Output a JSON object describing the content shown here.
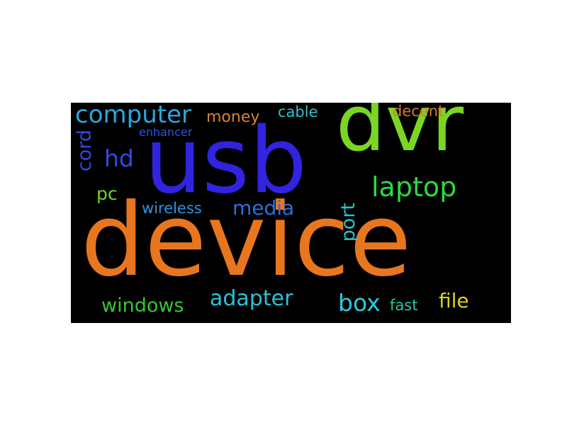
{
  "word_cloud": {
    "background_color": "#000000",
    "words": {
      "device": {
        "text": "device",
        "color": "#e8761f"
      },
      "usb": {
        "text": "usb",
        "color": "#3123e0"
      },
      "dvr": {
        "text": "dvr",
        "color": "#7bd624"
      },
      "laptop": {
        "text": "laptop",
        "color": "#2bd840"
      },
      "computer": {
        "text": "computer",
        "color": "#27a8dc"
      },
      "media": {
        "text": "media",
        "color": "#2c6fe0"
      },
      "windows": {
        "text": "windows",
        "color": "#33c730"
      },
      "adapter": {
        "text": "adapter",
        "color": "#2bc2d8"
      },
      "box": {
        "text": "box",
        "color": "#2bc9e0"
      },
      "file": {
        "text": "file",
        "color": "#d8d31e"
      },
      "fast": {
        "text": "fast",
        "color": "#26c7a6"
      },
      "hd": {
        "text": "hd",
        "color": "#3049e0"
      },
      "pc": {
        "text": "pc",
        "color": "#72d42a"
      },
      "wireless": {
        "text": "wireless",
        "color": "#2d93e0"
      },
      "money": {
        "text": "money",
        "color": "#d9832a"
      },
      "cable": {
        "text": "cable",
        "color": "#2bc2c9"
      },
      "decent": {
        "text": "decent",
        "color": "#d8772a"
      },
      "enhancer": {
        "text": "enhancer",
        "color": "#2f55db"
      },
      "cord": {
        "text": "cord",
        "color": "#3049e0"
      },
      "port": {
        "text": "port",
        "color": "#2bc2c9"
      }
    }
  }
}
